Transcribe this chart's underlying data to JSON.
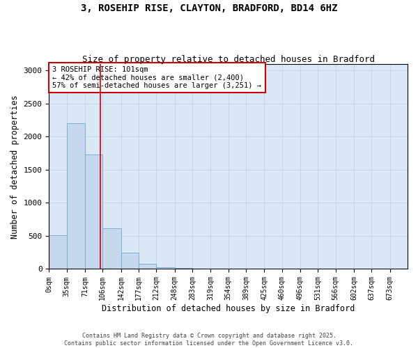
{
  "title_line1": "3, ROSEHIP RISE, CLAYTON, BRADFORD, BD14 6HZ",
  "title_line2": "Size of property relative to detached houses in Bradford",
  "xlabel": "Distribution of detached houses by size in Bradford",
  "ylabel": "Number of detached properties",
  "annotation_line1": "3 ROSEHIP RISE: 101sqm",
  "annotation_line2": "← 42% of detached houses are smaller (2,400)",
  "annotation_line3": "57% of semi-detached houses are larger (3,251) →",
  "property_size": 101,
  "bar_edges": [
    0,
    35,
    71,
    106,
    142,
    177,
    212,
    248,
    283,
    319,
    354,
    389,
    425,
    460,
    496,
    531,
    566,
    602,
    637,
    673,
    708
  ],
  "bar_heights": [
    510,
    2210,
    1730,
    620,
    250,
    80,
    30,
    15,
    8,
    5,
    3,
    2,
    1,
    1,
    0,
    0,
    0,
    0,
    0,
    0
  ],
  "bar_color": "#c5d8ee",
  "bar_edgecolor": "#7bafd4",
  "redline_color": "#cc0000",
  "ylim": [
    0,
    3100
  ],
  "yticks": [
    0,
    500,
    1000,
    1500,
    2000,
    2500,
    3000
  ],
  "grid_color": "#c8d8e8",
  "bg_color": "#dce8f5",
  "footnote_line1": "Contains HM Land Registry data © Crown copyright and database right 2025.",
  "footnote_line2": "Contains public sector information licensed under the Open Government Licence v3.0."
}
